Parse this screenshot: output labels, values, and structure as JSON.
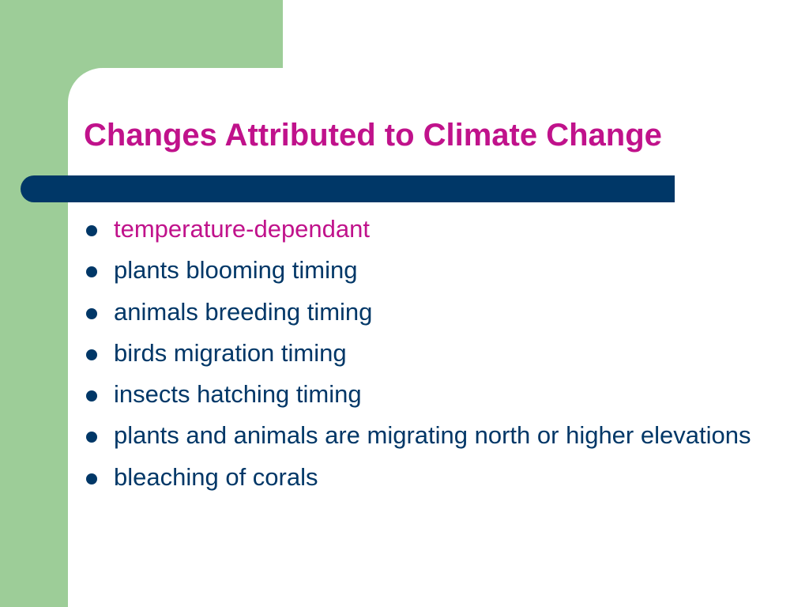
{
  "slide": {
    "title": "Changes Attributed to Climate Change",
    "bullets": [
      {
        "text": "temperature-dependant",
        "color": "#c0128b"
      },
      {
        "text": "plants blooming timing",
        "color": "#003767"
      },
      {
        "text": "animals breeding timing",
        "color": "#003767"
      },
      {
        "text": "birds migration timing",
        "color": "#003767"
      },
      {
        "text": "insects hatching timing",
        "color": "#003767"
      },
      {
        "text": "plants and animals are migrating north or higher elevations",
        "color": "#003767"
      },
      {
        "text": "bleaching of corals",
        "color": "#003767"
      }
    ]
  },
  "theme": {
    "accent_magenta": "#c0128b",
    "navy": "#003767",
    "green": "#9dcd98",
    "background": "#ffffff"
  }
}
